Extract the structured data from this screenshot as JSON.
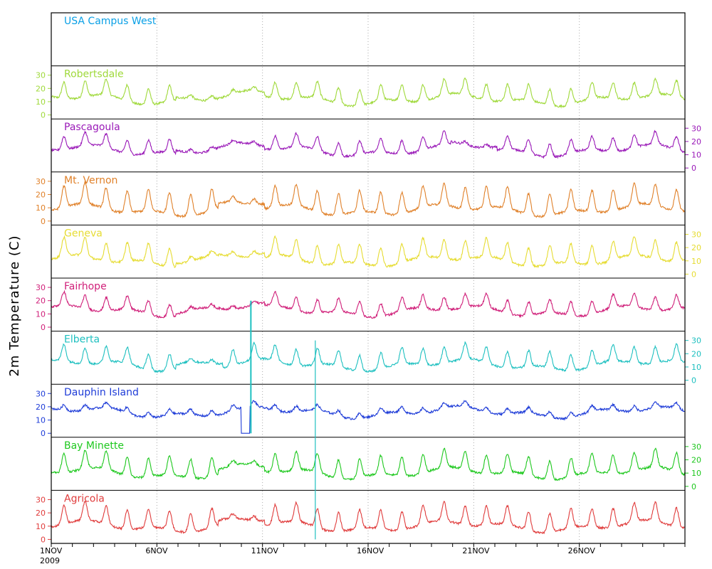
{
  "chart_data": {
    "type": "line",
    "ylabel": "2m Temperature (C)",
    "x_start": "1NOV 2009",
    "x_ticks": [
      "1NOV",
      "6NOV",
      "11NOV",
      "16NOV",
      "21NOV",
      "26NOV"
    ],
    "x_year_label": "2009",
    "x_range_days": [
      1,
      31
    ],
    "ylim": [
      -3,
      37
    ],
    "y_ticks": [
      0,
      10,
      20,
      30
    ],
    "grid": "vertical dotted lines every 5 days",
    "series": [
      {
        "name": "USA Campus West",
        "color": "#0aa0e6",
        "axis_side": "none",
        "mean": null,
        "amp": 0,
        "cloudy_days": []
      },
      {
        "name": "Robertsdale",
        "color": "#9fd93a",
        "axis_side": "left",
        "mean": 15,
        "amp": 6,
        "cloudy_days": [
          7.5,
          8.5,
          9.5,
          10.5
        ]
      },
      {
        "name": "Pascagoula",
        "color": "#9a1ab8",
        "axis_side": "right",
        "mean": 16,
        "amp": 5,
        "cloudy_days": [
          7.5,
          8.5,
          9.5,
          10.5,
          20.5,
          21.5
        ]
      },
      {
        "name": "Mt. Vernon",
        "color": "#e0812a",
        "axis_side": "left",
        "mean": 13,
        "amp": 8,
        "cloudy_days": [
          9.5,
          10.5
        ]
      },
      {
        "name": "Geneva",
        "color": "#e6dc32",
        "axis_side": "right",
        "mean": 14,
        "amp": 7,
        "cloudy_days": [
          7.5,
          8.5,
          9.5,
          10.5
        ]
      },
      {
        "name": "Fairhope",
        "color": "#d0207a",
        "axis_side": "left",
        "mean": 15,
        "amp": 5,
        "cloudy_days": [
          7.5,
          8.5,
          9.5,
          10.5
        ]
      },
      {
        "name": "Elberta",
        "color": "#1ec0c0",
        "axis_side": "right",
        "mean": 15,
        "amp": 6,
        "cloudy_days": [
          7.5,
          8.5
        ]
      },
      {
        "name": "Dauphin Island",
        "color": "#1e3cd8",
        "axis_side": "left",
        "mean": 17,
        "amp": 2,
        "cloudy_days": []
      },
      {
        "name": "Bay Minette",
        "color": "#1ec81e",
        "axis_side": "right",
        "mean": 14,
        "amp": 7,
        "cloudy_days": [
          9.5,
          10.5
        ]
      },
      {
        "name": "Agricola",
        "color": "#e03c3c",
        "axis_side": "left",
        "mean": 14,
        "amp": 7,
        "cloudy_days": [
          9.5,
          10.5
        ]
      }
    ],
    "annotations": [
      {
        "desc": "Dauphin Island drop to 0 near 10NOV",
        "day_start": 10.0,
        "day_end": 10.4,
        "value": 0
      },
      {
        "desc": "Cyan spike across panels near 10NOV",
        "day": 10.45,
        "value_top": 20,
        "value_bottom": 0
      },
      {
        "desc": "Cyan spike across panels near 13.5NOV",
        "day": 13.5
      }
    ]
  }
}
